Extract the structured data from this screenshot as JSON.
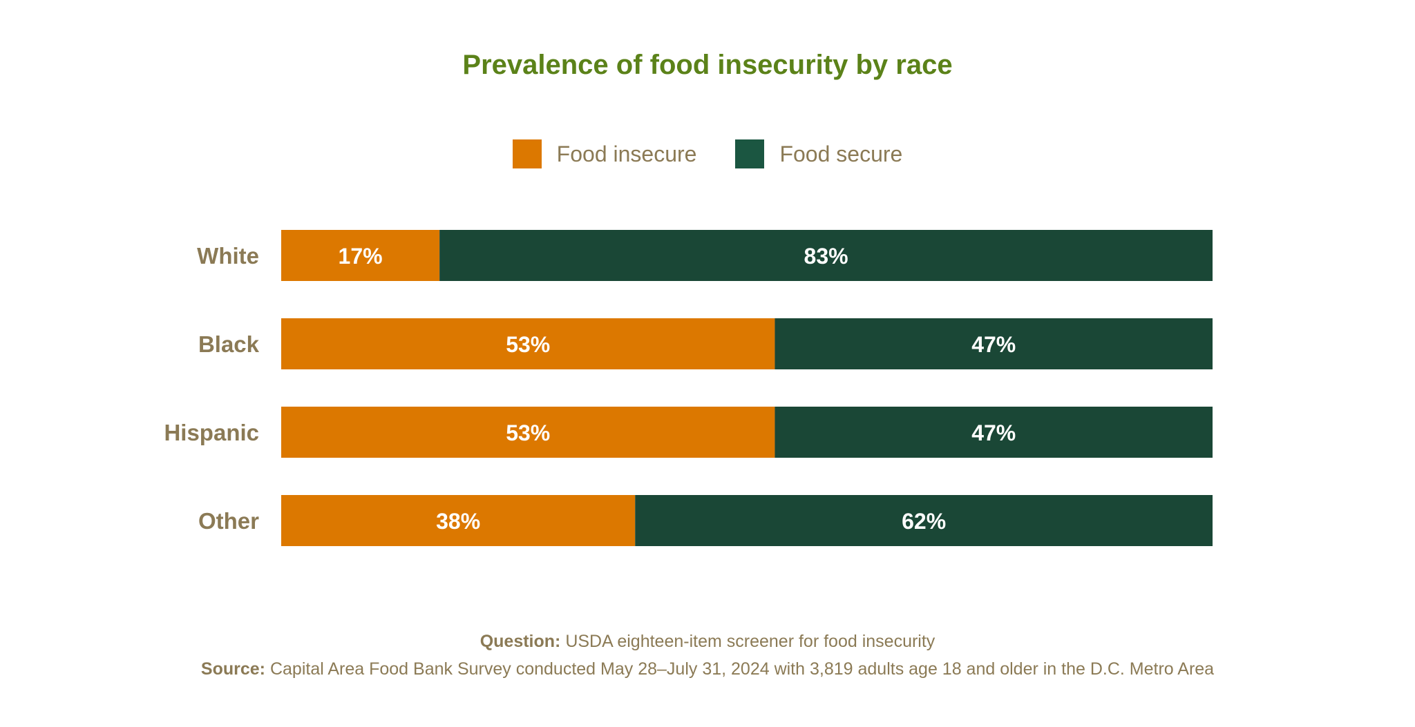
{
  "chart_data": {
    "type": "bar",
    "orientation": "horizontal",
    "stacked": true,
    "title": "Prevalence of food insecurity by race",
    "categories": [
      "White",
      "Black",
      "Hispanic",
      "Other"
    ],
    "series": [
      {
        "name": "Food insecure",
        "color": "#dc7800",
        "values": [
          17,
          53,
          53,
          38
        ],
        "labels": [
          "17%",
          "53%",
          "53%",
          "38%"
        ]
      },
      {
        "name": "Food secure",
        "color": "#1a4736",
        "values": [
          83,
          47,
          47,
          62
        ],
        "labels": [
          "83%",
          "47%",
          "47%",
          "62%"
        ]
      }
    ],
    "xlim": [
      0,
      100
    ],
    "grid": false,
    "legend": "top-center"
  },
  "legend_colors": [
    "#dc7800",
    "#1b5641"
  ],
  "footer": {
    "question_label": "Question:",
    "question_text": " USDA eighteen-item screener for food insecurity",
    "source_label": "Source:",
    "source_text": " Capital Area Food Bank Survey conducted May 28–July 31, 2024 with 3,819 adults age 18 and older in the D.C. Metro Area"
  }
}
